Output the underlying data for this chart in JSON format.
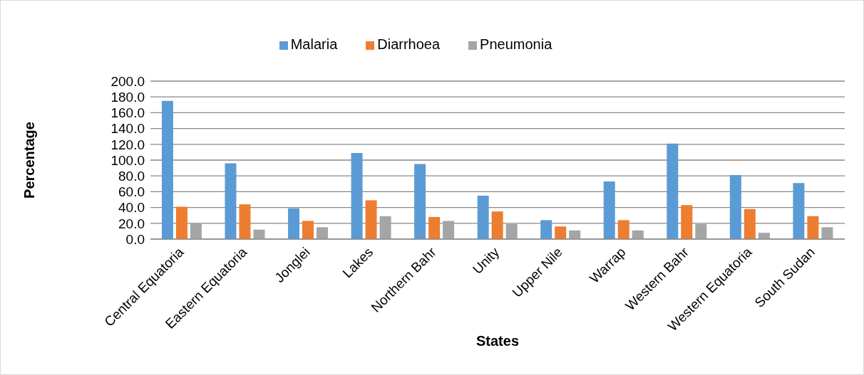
{
  "chart_data": {
    "type": "bar",
    "xlabel": "States",
    "ylabel": "Percentage",
    "categories": [
      "Central Equatoria",
      "Eastern Equatoria",
      "Jonglei",
      "Lakes",
      "Northern Bahr",
      "Unity",
      "Upper Nile",
      "Warrap",
      "Western Bahr",
      "Western Equatoria",
      "South Sudan"
    ],
    "series": [
      {
        "name": "Malaria",
        "color": "#5b9bd5",
        "values": [
          175,
          96,
          39,
          109,
          95,
          55,
          24,
          73,
          121,
          81,
          71
        ]
      },
      {
        "name": "Diarrhoea",
        "color": "#ed7d31",
        "values": [
          41,
          44,
          23,
          49,
          28,
          35,
          16,
          24,
          43,
          38,
          29
        ]
      },
      {
        "name": "Pneumonia",
        "color": "#a5a5a5",
        "values": [
          20,
          12,
          15,
          29,
          23,
          19,
          11,
          11,
          19,
          8,
          15
        ]
      }
    ],
    "ylim": [
      0,
      200
    ],
    "yticks": [
      {
        "value": 0,
        "label": "0.0"
      },
      {
        "value": 20,
        "label": "20.0"
      },
      {
        "value": 40,
        "label": "40.0"
      },
      {
        "value": 60,
        "label": "60.0"
      },
      {
        "value": 80,
        "label": "80.0"
      },
      {
        "value": 100,
        "label": "100.0"
      },
      {
        "value": 120,
        "label": "120.0"
      },
      {
        "value": 140,
        "label": "140.0"
      },
      {
        "value": 160,
        "label": "160.0"
      },
      {
        "value": 180,
        "label": "180.0"
      },
      {
        "value": 200,
        "label": "200.0"
      }
    ],
    "grid": "y",
    "legend": "top"
  }
}
